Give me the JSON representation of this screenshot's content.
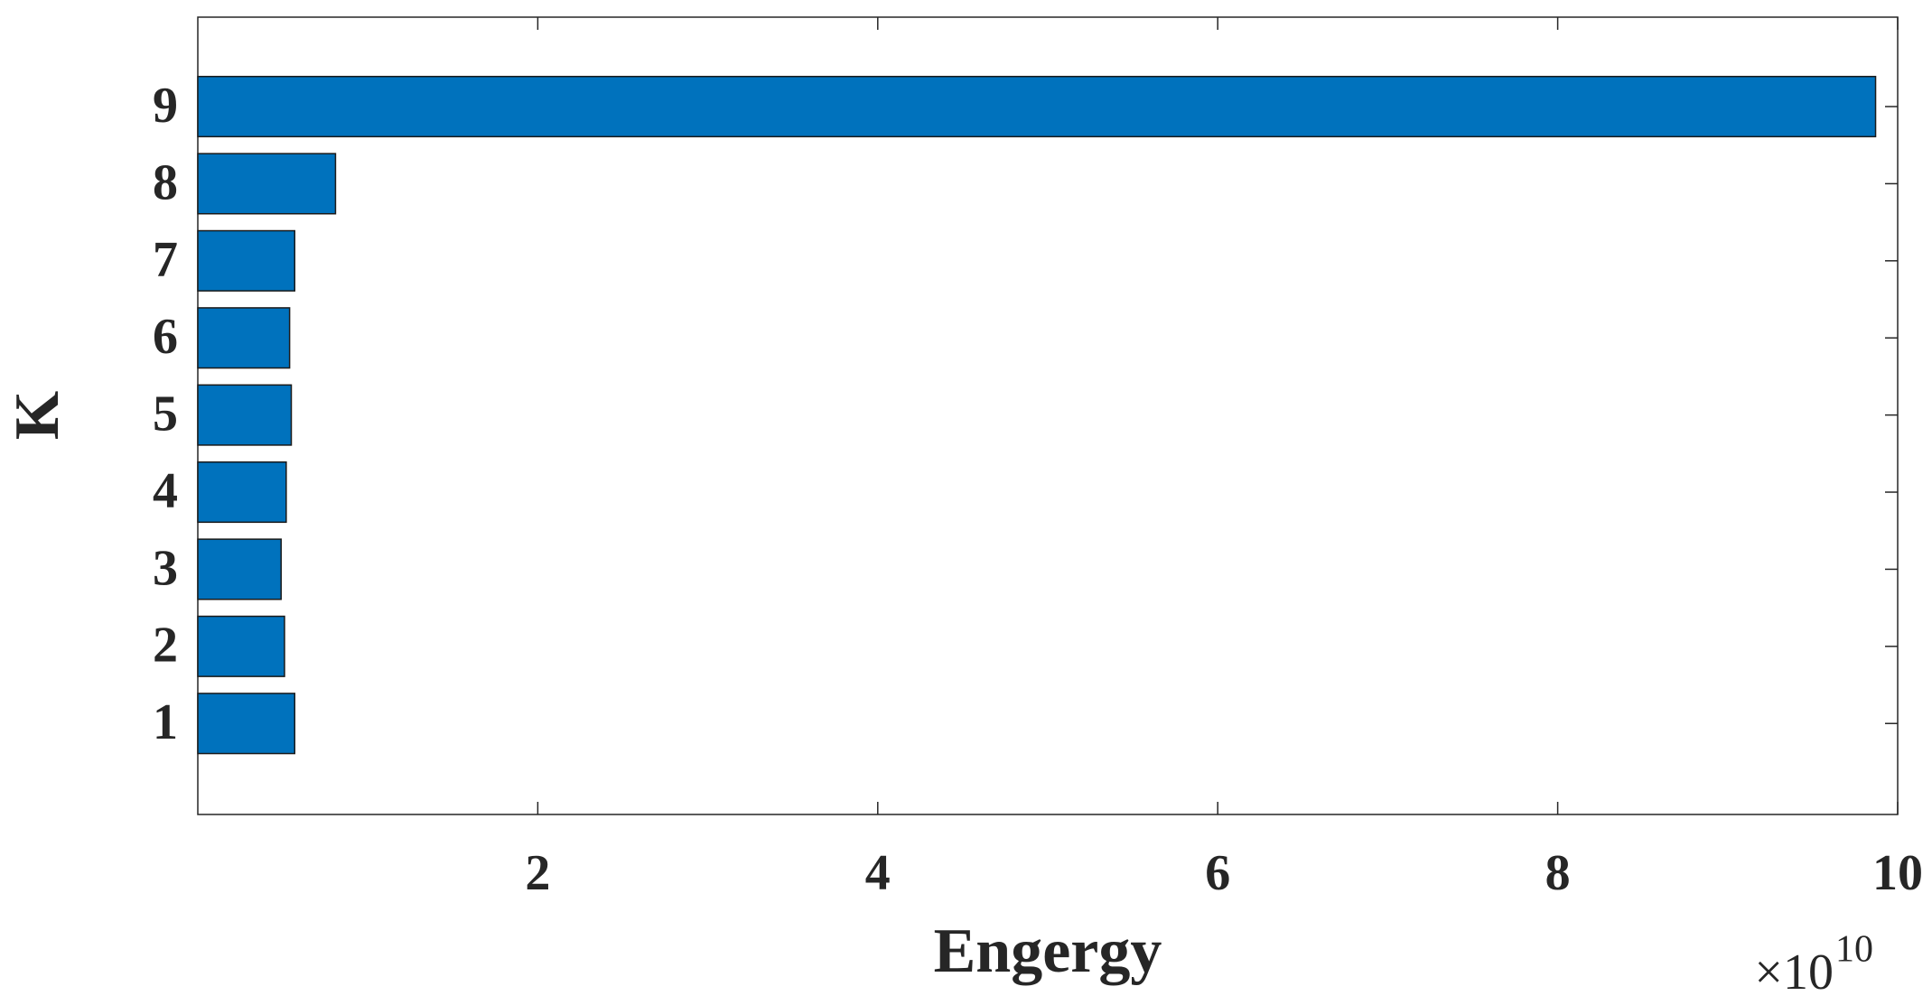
{
  "chart_data": {
    "type": "barh",
    "categories": [
      "1",
      "2",
      "3",
      "4",
      "5",
      "6",
      "7",
      "8",
      "9"
    ],
    "values": [
      0.57,
      0.51,
      0.49,
      0.52,
      0.55,
      0.54,
      0.57,
      0.81,
      9.87
    ],
    "color": "#0072bd",
    "xlim": [
      0,
      10
    ],
    "xticks": [
      2,
      4,
      6,
      8,
      10
    ],
    "x_label": "Engergy",
    "y_label": "K",
    "x_scale_label": {
      "base": "×10",
      "exponent": "10"
    },
    "grid": false
  }
}
